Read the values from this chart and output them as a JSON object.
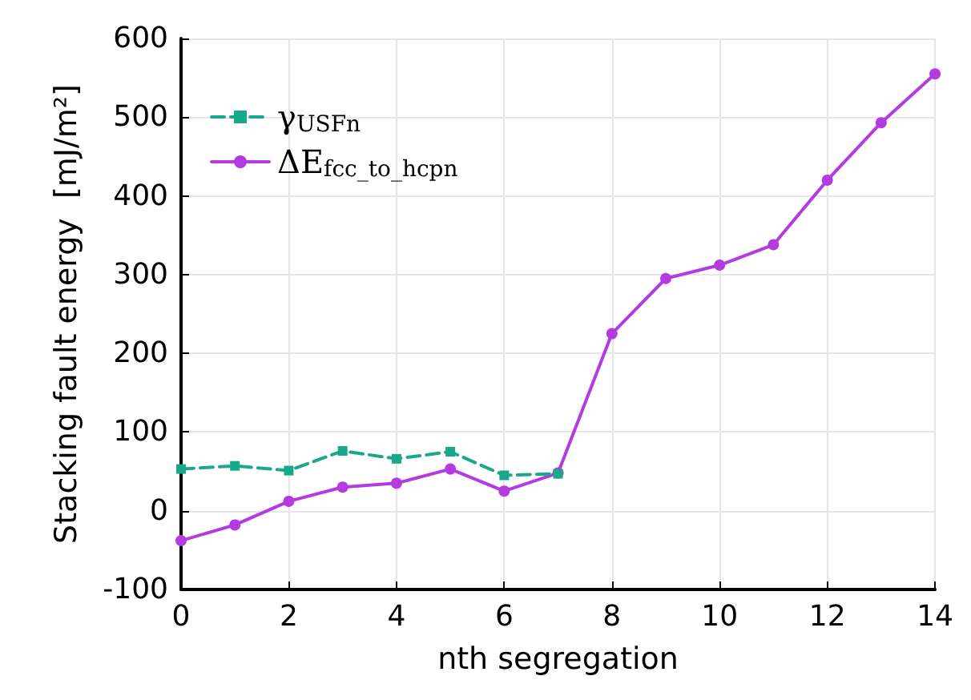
{
  "chart_data": {
    "type": "line",
    "xlabel": "nth segregation",
    "ylabel": "Stacking fault energy  [mJ/m²]",
    "x": [
      0,
      1,
      2,
      3,
      4,
      5,
      6,
      7,
      8,
      9,
      10,
      11,
      12,
      13,
      14
    ],
    "series": [
      {
        "name": "γ$_{USFn}$",
        "color": "#1aa88a",
        "marker": "square",
        "line_style": "dashed",
        "values": [
          53,
          57,
          51,
          76,
          66,
          75,
          45,
          47,
          null,
          null,
          null,
          null,
          null,
          null,
          null
        ]
      },
      {
        "name": "ΔE$_{fcc_to_hcpn}$",
        "color": "#b43be0",
        "marker": "circle",
        "line_style": "solid",
        "values": [
          -38,
          -18,
          12,
          30,
          35,
          53,
          25,
          48,
          225,
          295,
          312,
          338,
          420,
          493,
          555
        ]
      }
    ],
    "xlim": [
      0,
      14
    ],
    "xticks": [
      0,
      2,
      4,
      6,
      8,
      10,
      12,
      14
    ],
    "ylim": [
      -100,
      600
    ],
    "yticks": [
      -100,
      0,
      100,
      200,
      300,
      400,
      500,
      600
    ],
    "grid": true,
    "legend": "top left"
  }
}
